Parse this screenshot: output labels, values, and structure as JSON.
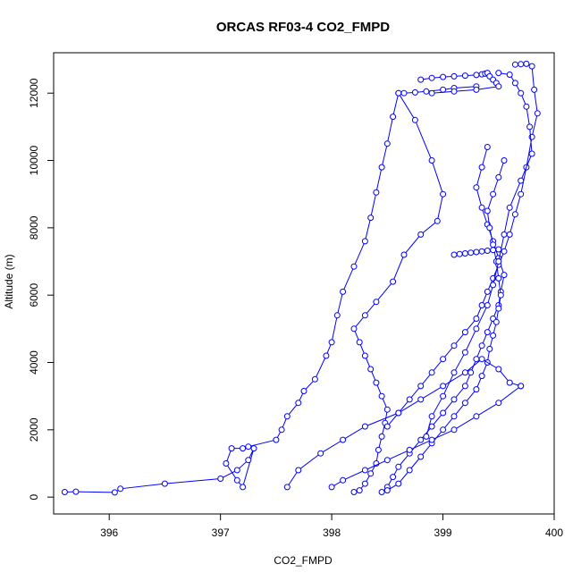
{
  "chart_data": {
    "type": "line",
    "title": "ORCAS RF03-4 CO2_FMPD",
    "xlabel": "CO2_FMPD",
    "ylabel": "Altitude (m)",
    "xlim": [
      395.5,
      400.0
    ],
    "ylim": [
      -500,
      13200
    ],
    "xticks": [
      396,
      397,
      398,
      399,
      400
    ],
    "yticks": [
      0,
      2000,
      4000,
      6000,
      8000,
      10000,
      12000
    ],
    "xtick_labels": [
      "396",
      "397",
      "398",
      "399",
      "400"
    ],
    "ytick_labels": [
      "0",
      "2000",
      "4000",
      "6000",
      "8000",
      "10000",
      "12000"
    ],
    "series_color": "#0000ff",
    "grid": false,
    "series": [
      {
        "x": [
          395.6,
          395.7,
          396.05,
          396.1,
          396.5,
          397.0,
          397.15,
          397.25,
          397.3,
          397.2,
          397.15,
          397.05,
          397.1,
          397.2,
          397.25,
          397.5,
          397.55,
          397.6,
          397.7,
          397.75,
          397.85,
          397.95,
          398.0,
          398.05,
          398.1,
          398.2,
          398.3,
          398.35,
          398.4,
          398.45,
          398.5,
          398.55,
          398.6,
          398.65,
          398.75,
          398.85,
          399.0,
          399.1,
          399.3
        ],
        "y": [
          150,
          160,
          140,
          250,
          400,
          550,
          800,
          1100,
          1450,
          300,
          500,
          1000,
          1450,
          1450,
          1500,
          1700,
          2000,
          2400,
          2800,
          3150,
          3500,
          4200,
          4600,
          5400,
          6100,
          6850,
          7600,
          8300,
          9050,
          9800,
          10500,
          11300,
          12000,
          12000,
          12020,
          12050,
          12100,
          12150,
          12200
        ]
      },
      {
        "x": [
          398.2,
          398.25,
          398.3,
          398.35,
          398.4,
          398.42,
          398.45,
          398.48,
          398.5,
          398.45,
          398.4,
          398.35,
          398.3,
          398.25,
          398.2,
          398.3,
          398.4,
          398.55,
          398.65,
          398.8,
          398.95,
          399.0,
          398.9,
          398.75,
          398.6
        ],
        "y": [
          150,
          200,
          400,
          700,
          1000,
          1400,
          1800,
          2200,
          2600,
          3000,
          3400,
          3800,
          4200,
          4600,
          5000,
          5400,
          5800,
          6400,
          7200,
          7800,
          8200,
          9000,
          10000,
          11200,
          12000
        ]
      },
      {
        "x": [
          398.45,
          398.5,
          398.55,
          398.6,
          398.7,
          398.8,
          398.9,
          399.0,
          399.1,
          399.2,
          399.25,
          399.3,
          399.35,
          399.4,
          399.45,
          399.5,
          399.52,
          399.55,
          399.5,
          399.45,
          399.4,
          399.35,
          399.3,
          399.35,
          399.4
        ],
        "y": [
          150,
          300,
          600,
          900,
          1300,
          1700,
          2100,
          2500,
          2900,
          3300,
          3700,
          4100,
          4500,
          4900,
          5300,
          5700,
          6100,
          6600,
          7100,
          7600,
          8100,
          8600,
          9200,
          9800,
          10400
        ]
      },
      {
        "x": [
          398.5,
          398.6,
          398.7,
          398.8,
          398.9,
          399.0,
          399.1,
          399.2,
          399.3,
          399.35,
          399.4,
          399.42,
          399.45,
          399.48,
          399.5,
          399.52,
          399.5,
          399.48,
          399.45,
          399.42,
          399.4,
          399.45,
          399.5,
          399.55
        ],
        "y": [
          200,
          400,
          800,
          1200,
          1600,
          2000,
          2400,
          2800,
          3200,
          3600,
          4000,
          4400,
          4800,
          5200,
          5600,
          6000,
          6500,
          7000,
          7500,
          8000,
          8500,
          9000,
          9500,
          10000
        ]
      },
      {
        "x": [
          399.65,
          399.7,
          399.75,
          399.8,
          399.82,
          399.85,
          399.8,
          399.75,
          399.7,
          399.65,
          399.6,
          399.55,
          399.5,
          399.45,
          399.4,
          399.35,
          399.3,
          399.2,
          399.1,
          399.0,
          398.9,
          398.8,
          398.7,
          398.6,
          398.5
        ],
        "y": [
          12850,
          12860,
          12870,
          12800,
          12100,
          11400,
          10700,
          9800,
          9000,
          8400,
          7800,
          7300,
          6900,
          6500,
          6100,
          5700,
          5300,
          4900,
          4500,
          4100,
          3700,
          3300,
          2900,
          2500,
          2100
        ]
      },
      {
        "x": [
          399.5,
          399.6,
          399.65,
          399.7,
          399.75,
          399.78,
          399.8,
          399.7,
          399.6,
          399.55,
          399.5,
          399.45,
          399.4,
          399.3,
          399.2,
          399.1,
          399.0,
          398.9,
          398.85
        ],
        "y": [
          12600,
          12550,
          12300,
          12000,
          11600,
          11000,
          10200,
          9400,
          8600,
          7800,
          7000,
          6300,
          5700,
          5000,
          4300,
          3700,
          3000,
          2400,
          1800
        ]
      },
      {
        "x": [
          399.1,
          399.15,
          399.2,
          399.25,
          399.3,
          399.35,
          399.4,
          399.45,
          399.5
        ],
        "y": [
          7200,
          7220,
          7240,
          7260,
          7280,
          7300,
          7320,
          7340,
          7360
        ]
      },
      {
        "x": [
          398.8,
          398.9,
          399.0,
          399.1,
          399.2,
          399.3,
          399.35,
          399.38,
          399.4,
          399.42,
          399.45,
          399.48,
          399.5,
          399.3,
          399.1,
          398.9
        ],
        "y": [
          12400,
          12450,
          12480,
          12500,
          12520,
          12540,
          12560,
          12580,
          12600,
          12500,
          12400,
          12300,
          12200,
          12100,
          12050,
          12000
        ]
      },
      {
        "x": [
          397.6,
          397.7,
          397.9,
          398.1,
          398.3,
          398.6,
          398.8,
          399.0,
          399.2,
          399.35,
          399.5,
          399.6,
          399.7
        ],
        "y": [
          300,
          800,
          1300,
          1700,
          2100,
          2500,
          2900,
          3300,
          3700,
          4100,
          3800,
          3400,
          3300
        ]
      },
      {
        "x": [
          399.7,
          399.5,
          399.3,
          399.1,
          398.9,
          398.7,
          398.5,
          398.3,
          398.1,
          398.0
        ],
        "y": [
          3300,
          2800,
          2400,
          2000,
          1700,
          1400,
          1100,
          800,
          500,
          300
        ]
      }
    ]
  }
}
